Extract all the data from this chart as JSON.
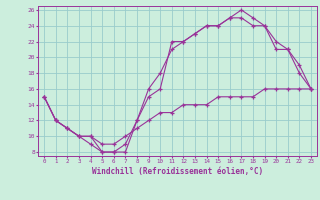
{
  "xlabel": "Windchill (Refroidissement éolien,°C)",
  "background_color": "#cceedd",
  "line_color": "#993399",
  "grid_color": "#99cccc",
  "xlim": [
    -0.5,
    23.5
  ],
  "ylim": [
    7.5,
    26.5
  ],
  "xticks": [
    0,
    1,
    2,
    3,
    4,
    5,
    6,
    7,
    8,
    9,
    10,
    11,
    12,
    13,
    14,
    15,
    16,
    17,
    18,
    19,
    20,
    21,
    22,
    23
  ],
  "yticks": [
    8,
    10,
    12,
    14,
    16,
    18,
    20,
    22,
    24,
    26
  ],
  "line1_x": [
    0,
    1,
    2,
    3,
    4,
    5,
    6,
    7,
    8,
    9,
    10,
    11,
    12,
    13,
    14,
    15,
    16,
    17,
    18,
    19,
    20,
    21,
    22,
    23
  ],
  "line1_y": [
    15,
    12,
    11,
    10,
    10,
    8,
    8,
    8,
    12,
    16,
    18,
    21,
    22,
    23,
    24,
    24,
    25,
    26,
    25,
    24,
    22,
    21,
    19,
    16
  ],
  "line2_x": [
    0,
    1,
    2,
    3,
    4,
    5,
    6,
    7,
    8,
    9,
    10,
    11,
    12,
    13,
    14,
    15,
    16,
    17,
    18,
    19,
    20,
    21,
    22,
    23
  ],
  "line2_y": [
    15,
    12,
    11,
    10,
    9,
    8,
    8,
    9,
    12,
    15,
    16,
    22,
    22,
    23,
    24,
    24,
    25,
    25,
    24,
    24,
    21,
    21,
    18,
    16
  ],
  "line3_x": [
    0,
    1,
    2,
    3,
    4,
    5,
    6,
    7,
    8,
    9,
    10,
    11,
    12,
    13,
    14,
    15,
    16,
    17,
    18,
    19,
    20,
    21,
    22,
    23
  ],
  "line3_y": [
    15,
    12,
    11,
    10,
    10,
    9,
    9,
    10,
    11,
    12,
    13,
    13,
    14,
    14,
    14,
    15,
    15,
    15,
    15,
    16,
    16,
    16,
    16,
    16
  ]
}
